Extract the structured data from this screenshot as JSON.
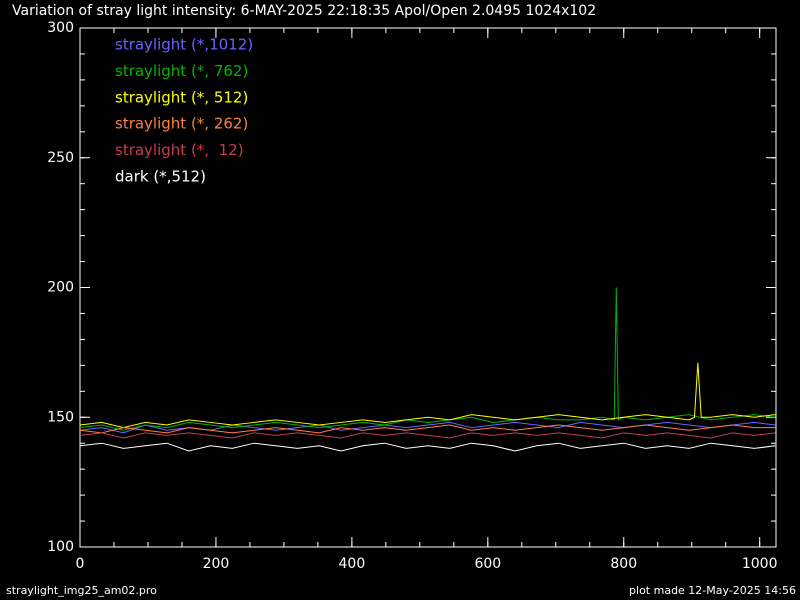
{
  "chart_data": {
    "type": "line",
    "title": "Variation of stray light intensity:  6-MAY-2025 22:18:35   Apol/Open   2.0495 1024x102",
    "footer_left": "straylight_img25_am02.pro",
    "footer_right": "plot made 12-May-2025 14:56",
    "xlim": [
      0,
      1024
    ],
    "ylim": [
      100,
      300
    ],
    "xticks": [
      0,
      200,
      400,
      600,
      800,
      1000
    ],
    "yticks": [
      100,
      150,
      200,
      250,
      300
    ],
    "xminor": 4,
    "yminor": 5,
    "legend": "top-left",
    "x": [
      0,
      32,
      64,
      96,
      128,
      160,
      192,
      224,
      256,
      288,
      320,
      352,
      384,
      416,
      448,
      480,
      512,
      544,
      576,
      608,
      640,
      672,
      704,
      736,
      768,
      800,
      832,
      864,
      896,
      928,
      960,
      992,
      1023
    ],
    "series": [
      {
        "name": "straylight (*,1012)",
        "color": "#6464ff",
        "values": [
          145,
          146,
          144,
          147,
          145,
          146,
          145,
          147,
          146,
          145,
          146,
          147,
          145,
          146,
          147,
          146,
          147,
          148,
          146,
          147,
          148,
          147,
          146,
          148,
          147,
          146,
          147,
          148,
          147,
          146,
          147,
          148,
          147
        ]
      },
      {
        "name": "straylight (*, 762)",
        "color": "#00b400",
        "x": [
          0,
          32,
          64,
          96,
          128,
          160,
          192,
          224,
          256,
          288,
          320,
          352,
          384,
          416,
          448,
          480,
          512,
          544,
          576,
          608,
          640,
          672,
          704,
          736,
          768,
          786,
          789,
          792,
          800,
          832,
          864,
          896,
          928,
          960,
          992,
          1023
        ],
        "values": [
          146,
          147,
          145,
          147,
          146,
          148,
          147,
          146,
          147,
          148,
          147,
          146,
          147,
          148,
          147,
          149,
          148,
          149,
          150,
          148,
          149,
          150,
          149,
          149,
          150,
          149,
          200,
          149,
          150,
          149,
          150,
          151,
          149,
          150,
          151,
          150
        ]
      },
      {
        "name": "straylight (*, 512)",
        "color": "#ffff00",
        "x": [
          0,
          32,
          64,
          96,
          128,
          160,
          192,
          224,
          256,
          288,
          320,
          352,
          384,
          416,
          448,
          480,
          512,
          544,
          576,
          608,
          640,
          672,
          704,
          736,
          768,
          800,
          832,
          864,
          896,
          904,
          909,
          914,
          928,
          960,
          992,
          1023
        ],
        "values": [
          147,
          148,
          146,
          148,
          147,
          149,
          148,
          147,
          148,
          149,
          148,
          147,
          148,
          149,
          148,
          149,
          150,
          149,
          151,
          150,
          149,
          150,
          151,
          150,
          149,
          150,
          151,
          150,
          149,
          150,
          171,
          150,
          150,
          151,
          150,
          151
        ]
      },
      {
        "name": "straylight (*, 262)",
        "color": "#ff7f40",
        "values": [
          145,
          144,
          146,
          145,
          144,
          146,
          145,
          144,
          145,
          146,
          145,
          144,
          146,
          145,
          146,
          145,
          146,
          147,
          145,
          146,
          145,
          146,
          147,
          146,
          145,
          146,
          147,
          146,
          145,
          146,
          147,
          146,
          146
        ]
      },
      {
        "name": "straylight (*,  12)",
        "color": "#c83c50",
        "values": [
          143,
          144,
          142,
          144,
          143,
          144,
          143,
          142,
          144,
          143,
          144,
          143,
          142,
          144,
          143,
          144,
          143,
          142,
          144,
          143,
          144,
          143,
          144,
          143,
          142,
          144,
          143,
          144,
          143,
          142,
          144,
          143,
          144
        ]
      },
      {
        "name": "dark (*,512)",
        "color": "#ffffff",
        "values": [
          139,
          140,
          138,
          139,
          140,
          137,
          139,
          138,
          140,
          139,
          138,
          139,
          137,
          139,
          140,
          138,
          139,
          138,
          140,
          139,
          137,
          139,
          140,
          138,
          139,
          140,
          138,
          139,
          138,
          140,
          139,
          138,
          139
        ]
      }
    ]
  }
}
